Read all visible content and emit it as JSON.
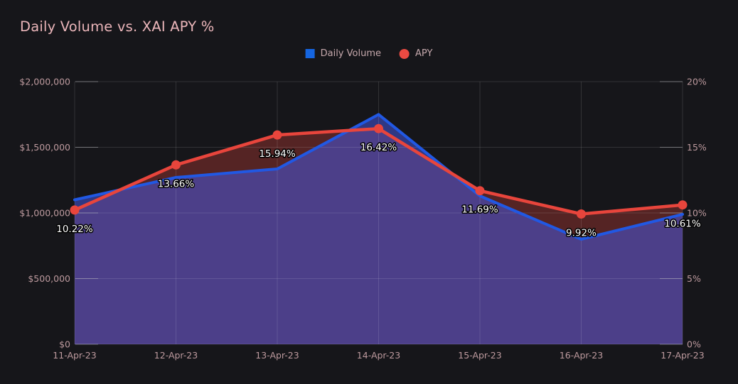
{
  "title": "Daily Volume vs. XAI APY %",
  "colors": {
    "background": "#16161a",
    "title_text": "#eab5b9",
    "axis_text": "#bd9a9e",
    "legend_text": "#c5a8ac",
    "gridline": "rgba(255,255,255,0.12)",
    "axis_tick": "rgba(185,185,190,0.5)",
    "volume_blue": "#2158e3",
    "volume_fill": "rgba(70,85,220,0.55)",
    "apy_red": "#e8453c",
    "apy_fill": "rgba(232,69,60,0.30)",
    "point_label_text": "#ffffff"
  },
  "legend": {
    "items": [
      {
        "label": "Daily Volume",
        "marker": "square",
        "color": "#1565e0"
      },
      {
        "label": "APY",
        "marker": "circle",
        "color": "#ea4a42"
      }
    ]
  },
  "chart_data": {
    "type": "area",
    "title": "Daily Volume vs. XAI APY %",
    "categories": [
      "11-Apr-23",
      "12-Apr-23",
      "13-Apr-23",
      "14-Apr-23",
      "15-Apr-23",
      "16-Apr-23",
      "17-Apr-23"
    ],
    "series": [
      {
        "name": "Daily Volume",
        "type": "area",
        "axis": "left",
        "color": "#2158e3",
        "fill": "rgba(70,85,220,0.55)",
        "values": [
          1100000,
          1270000,
          1335000,
          1750000,
          1130000,
          800000,
          990000
        ]
      },
      {
        "name": "APY",
        "type": "area-line",
        "axis": "right",
        "color": "#e8453c",
        "fill": "rgba(232,69,60,0.30)",
        "marker": "circle",
        "values": [
          10.22,
          13.66,
          15.94,
          16.42,
          11.69,
          9.92,
          10.61
        ],
        "point_labels": [
          "10.22%",
          "13.66%",
          "15.94%",
          "16.42%",
          "11.69%",
          "9.92%",
          "10.61%"
        ]
      }
    ],
    "left_axis": {
      "min": 0,
      "max": 2000000,
      "tick_values": [
        0,
        500000,
        1000000,
        1500000,
        2000000
      ],
      "tick_labels": [
        "$0",
        "$500,000",
        "$1,000,000",
        "$1,500,000",
        "$2,000,000"
      ]
    },
    "right_axis": {
      "min": 0,
      "max": 20,
      "tick_values": [
        0,
        5,
        10,
        15,
        20
      ],
      "tick_labels": [
        "0%",
        "5%",
        "10%",
        "15%",
        "20%"
      ]
    },
    "grid": true,
    "legend_position": "top-center"
  }
}
